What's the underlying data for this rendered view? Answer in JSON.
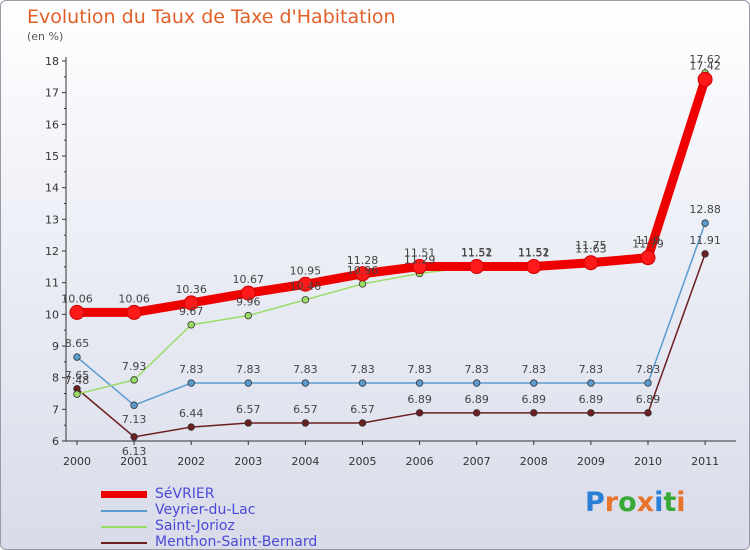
{
  "chart_data": {
    "type": "line",
    "title": "Evolution du Taux de Taxe d'Habitation",
    "subtitle": "(en %)",
    "x": [
      "2000",
      "2001",
      "2002",
      "2003",
      "2004",
      "2005",
      "2006",
      "2007",
      "2008",
      "2009",
      "2010",
      "2011"
    ],
    "ylim": [
      6,
      18
    ],
    "yticks": [
      "6",
      "7",
      "8",
      "9",
      "10",
      "11",
      "12",
      "13",
      "14",
      "15",
      "16",
      "17",
      "18"
    ],
    "grid": false,
    "legend_placement": "bottom-left",
    "series": [
      {
        "name": "SéVRIER",
        "color": "#ee0000",
        "values": [
          10.06,
          10.06,
          10.36,
          10.67,
          10.95,
          11.28,
          11.51,
          11.51,
          11.51,
          11.63,
          11.79,
          17.42
        ],
        "labels": [
          "10.06",
          "10.06",
          "10.36",
          "10.67",
          "10.95",
          "11.28",
          "11.51",
          "11.51",
          "11.51",
          "11.63",
          "11.79",
          "17.42"
        ]
      },
      {
        "name": "Veyrier-du-Lac",
        "color": "#5a9bd0",
        "values": [
          8.65,
          7.13,
          7.83,
          7.83,
          7.83,
          7.83,
          7.83,
          7.83,
          7.83,
          7.83,
          7.83,
          12.88
        ],
        "labels": [
          "8.65",
          "7.13",
          "7.83",
          "7.83",
          "7.83",
          "7.83",
          "7.83",
          "7.83",
          "7.83",
          "7.83",
          "7.83",
          "12.88"
        ]
      },
      {
        "name": "Saint-Jorioz",
        "color": "#99dd66",
        "values": [
          7.48,
          7.93,
          9.67,
          9.96,
          10.46,
          10.96,
          11.29,
          11.52,
          11.52,
          11.75,
          11.9,
          17.62
        ],
        "labels": [
          "7.48",
          "7.93",
          "9.67",
          "9.96",
          "10.46",
          "10.96",
          "11.29",
          "11.52",
          "11.52",
          "11.75",
          "11.9",
          "17.62"
        ]
      },
      {
        "name": "Menthon-Saint-Bernard",
        "color": "#6b1f1f",
        "values": [
          7.65,
          6.13,
          6.44,
          6.57,
          6.57,
          6.57,
          6.89,
          6.89,
          6.89,
          6.89,
          6.89,
          11.91
        ],
        "labels": [
          "7.65",
          "6.13",
          "6.44",
          "6.57",
          "6.57",
          "6.57",
          "6.89",
          "6.89",
          "6.89",
          "6.89",
          "6.89",
          "11.91"
        ]
      }
    ]
  },
  "logo": {
    "letters": [
      "P",
      "r",
      "o",
      "x",
      "i",
      "t",
      "i"
    ],
    "colors": [
      "#2b7fd6",
      "#e8742a",
      "#39a935",
      "#e8742a",
      "#2b7fd6",
      "#39a935",
      "#e8742a"
    ]
  }
}
